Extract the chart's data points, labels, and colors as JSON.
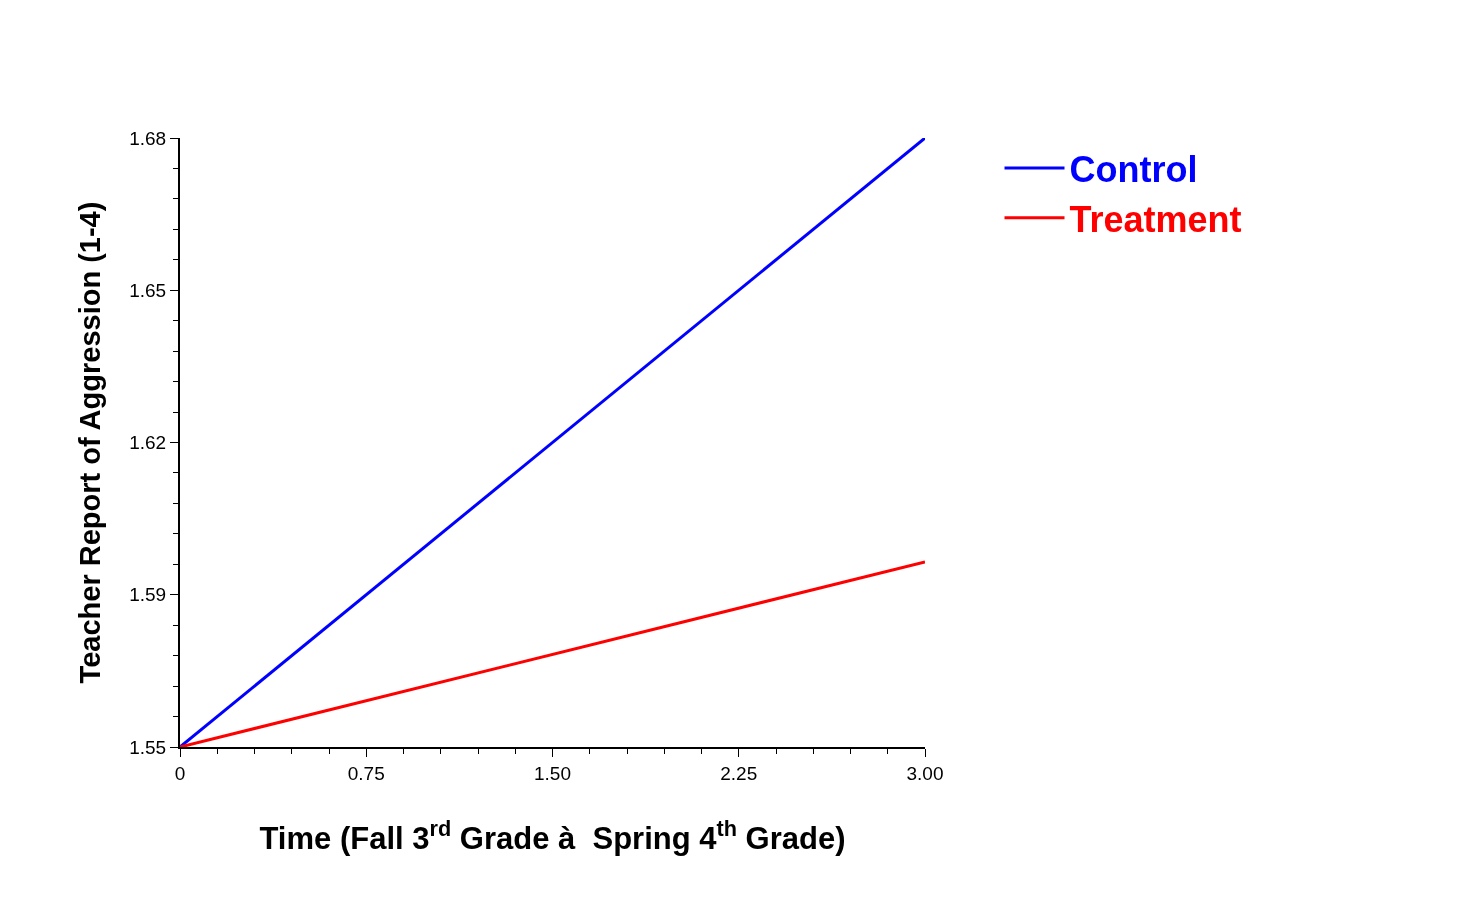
{
  "chart_data": {
    "type": "line",
    "x": [
      0,
      3
    ],
    "series": [
      {
        "name": "Control",
        "color": "#0000ff",
        "values": [
          1.555,
          1.68
        ]
      },
      {
        "name": "Treatment",
        "color": "#ff0000",
        "values": [
          1.555,
          1.593
        ]
      }
    ],
    "xlabel": "Time (Fall 3$^{rd}$ Grade à  Spring 4$^{th}$ Grade)",
    "ylabel": "Teacher Report of Aggression (1-4)",
    "xlim": [
      0,
      3
    ],
    "ylim": [
      1.555,
      1.68
    ],
    "xticks": [
      0,
      0.75,
      {
        "value": 1.5,
        "label": "1.50"
      },
      2.25,
      {
        "value": 3,
        "label": "3.00"
      }
    ],
    "yticks": [
      {
        "value": 1.555,
        "label": "1.55"
      },
      {
        "value": 1.58625,
        "label": "1.59"
      },
      {
        "value": 1.6175,
        "label": "1.62"
      },
      {
        "value": 1.64875,
        "label": "1.65"
      },
      1.68
    ],
    "legend": "top right",
    "marker": "none",
    "line_style": "solid"
  }
}
